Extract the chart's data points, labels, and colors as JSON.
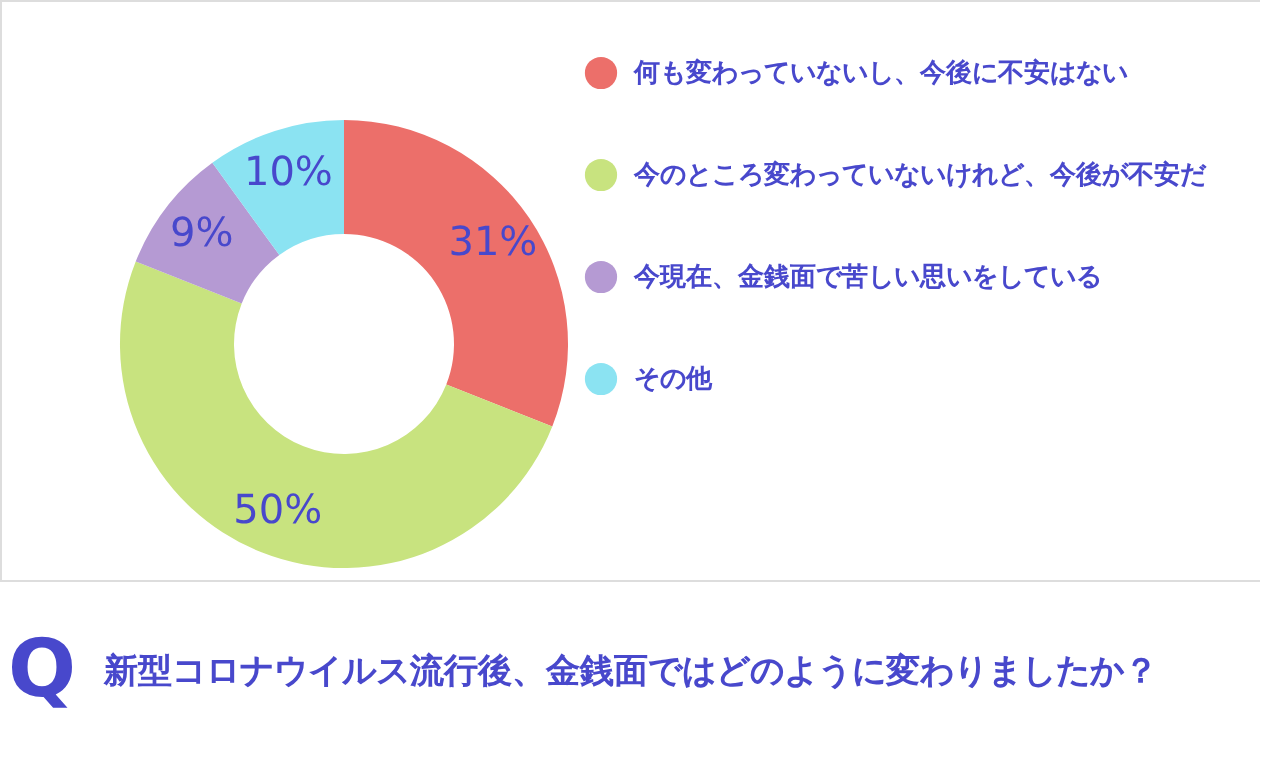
{
  "chart_data": {
    "type": "donut",
    "title": "新型コロナウイルス流行後、金銭面ではどのように変わりましたか？",
    "annotations": [
      "Q"
    ],
    "categories": [
      "何も変わっていないし、今後に不安はない",
      "今のところ変わっていないけれど、今後が不安だ",
      "今現在、金銭面で苦しい思いをしている",
      "その他"
    ],
    "values": [
      31,
      50,
      9,
      10
    ],
    "colors": [
      "#ec6f6a",
      "#c8e37f",
      "#b59ad3",
      "#8be3f2"
    ],
    "value_labels": [
      "31%",
      "50%",
      "9%",
      "10%"
    ],
    "legend": "right"
  }
}
